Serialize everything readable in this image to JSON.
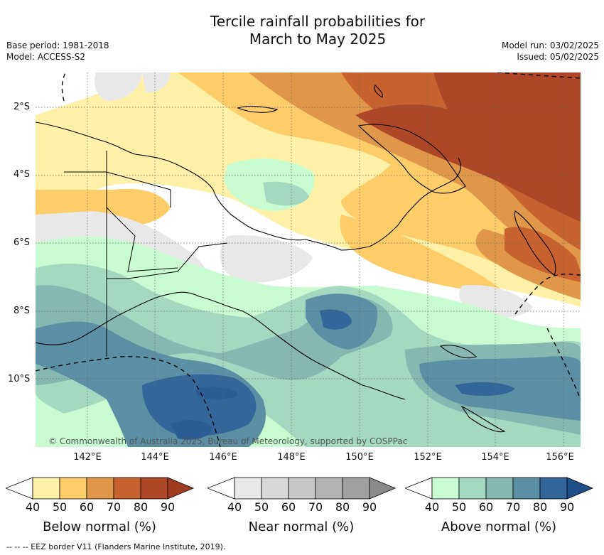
{
  "title_line1": "Tercile rainfall probabilities for",
  "title_line2": "March to May 2025",
  "meta": {
    "base_period": "Base period: 1981-2018",
    "model": "Model: ACCESS-S2",
    "model_run": "Model run: 03/02/2025",
    "issued": "Issued: 05/02/2025"
  },
  "lat_labels": [
    "2°S",
    "4°S",
    "6°S",
    "8°S",
    "10°S"
  ],
  "lon_labels": [
    "142°E",
    "144°E",
    "146°E",
    "148°E",
    "150°E",
    "152°E",
    "154°E",
    "156°E"
  ],
  "copyright": "© Commonwealth of Australia 2025, Bureau of Meteorology, supported by COSPPac",
  "colorbars": [
    {
      "title": "Below normal (%)",
      "ticks": [
        "40",
        "50",
        "60",
        "70",
        "80",
        "90"
      ],
      "colors": [
        "#fff0a8",
        "#fdcd6a",
        "#e0974a",
        "#c8622f",
        "#ad4727",
        "#a13c20"
      ]
    },
    {
      "title": "Near normal (%)",
      "ticks": [
        "40",
        "50",
        "60",
        "70",
        "80",
        "90"
      ],
      "colors": [
        "#e8e8e8",
        "#d8d8d8",
        "#c8c8c8",
        "#b3b3b3",
        "#a0a0a0",
        "#8a8a8a"
      ]
    },
    {
      "title": "Above normal (%)",
      "ticks": [
        "40",
        "50",
        "60",
        "70",
        "80",
        "90"
      ],
      "colors": [
        "#c8fcd0",
        "#a3d9c0",
        "#84b8b0",
        "#5b90a4",
        "#336699",
        "#1e4f88"
      ]
    }
  ],
  "footer": "--  --  -- EEZ border V11 (Flanders Marine Institute, 2019)."
}
